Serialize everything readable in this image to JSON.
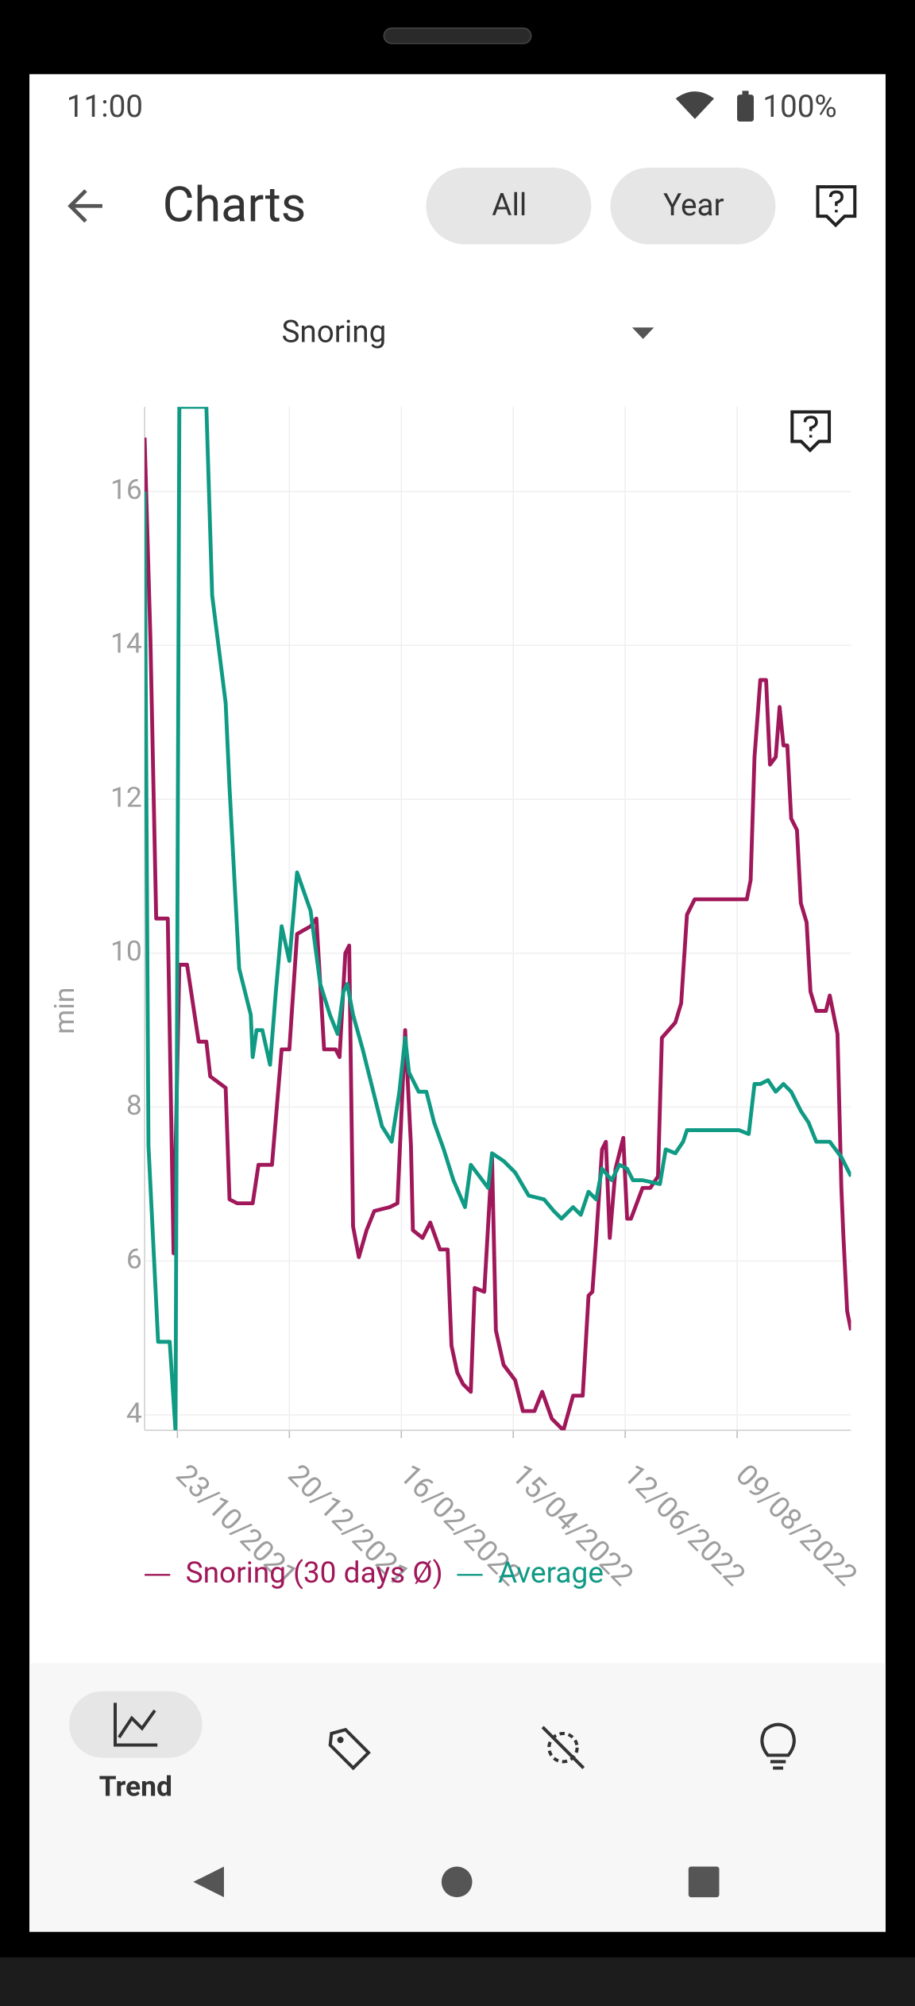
{
  "status_bar": {
    "time": "11:00",
    "battery": "100%"
  },
  "app_bar": {
    "title": "Charts",
    "filters": [
      "All",
      "Year"
    ]
  },
  "metric_selector": "Snoring",
  "chart_data": {
    "type": "line",
    "y_label": "min",
    "xlim": [
      "06/10/2021",
      "07/10/2022"
    ],
    "xticks": [
      "23/10/2021",
      "20/12/2021",
      "16/02/2022",
      "15/04/2022",
      "12/06/2022",
      "09/08/2022"
    ],
    "ylim": [
      3.8,
      17.1
    ],
    "yticks": [
      4,
      6,
      8,
      10,
      12,
      14,
      16
    ],
    "grid": true,
    "legend": "bottom",
    "series": [
      {
        "name": "Snoring (30 days Ø)",
        "color": "#a0175a",
        "x": [
          "06/10/2021",
          "09/10/2021",
          "12/10/2021",
          "18/10/2021",
          "21/10/2021",
          "24/10/2021",
          "28/10/2021",
          "03/11/2021",
          "07/11/2021",
          "09/11/2021",
          "17/11/2021",
          "19/11/2021",
          "23/11/2021",
          "01/12/2021",
          "04/12/2021",
          "11/12/2021",
          "16/12/2021",
          "20/12/2021",
          "24/12/2021",
          "31/12/2021",
          "03/01/2022",
          "07/01/2022",
          "13/01/2022",
          "15/01/2022",
          "18/01/2022",
          "20/01/2022",
          "22/01/2022",
          "25/01/2022",
          "29/01/2022",
          "02/02/2022",
          "10/02/2022",
          "14/02/2022",
          "18/02/2022",
          "21/02/2022",
          "22/02/2022",
          "27/02/2022",
          "03/03/2022",
          "08/03/2022",
          "12/03/2022",
          "14/03/2022",
          "17/03/2022",
          "20/03/2022",
          "24/03/2022",
          "26/03/2022",
          "31/03/2022",
          "04/04/2022",
          "06/04/2022",
          "10/04/2022",
          "16/04/2022",
          "20/04/2022",
          "26/04/2022",
          "30/04/2022",
          "05/05/2022",
          "11/05/2022",
          "16/05/2022",
          "21/05/2022",
          "24/05/2022",
          "26/05/2022",
          "28/05/2022",
          "31/05/2022",
          "02/06/2022",
          "04/06/2022",
          "07/06/2022",
          "11/06/2022",
          "13/06/2022",
          "15/06/2022",
          "21/06/2022",
          "25/06/2022",
          "29/06/2022",
          "01/07/2022",
          "08/07/2022",
          "11/07/2022",
          "14/07/2022",
          "18/07/2022",
          "14/08/2022",
          "16/08/2022",
          "18/08/2022",
          "21/08/2022",
          "24/08/2022",
          "26/08/2022",
          "29/08/2022",
          "31/08/2022",
          "02/09/2022",
          "04/09/2022",
          "06/09/2022",
          "09/09/2022",
          "11/09/2022",
          "14/09/2022",
          "16/09/2022",
          "19/09/2022",
          "24/09/2022",
          "26/09/2022",
          "30/09/2022",
          "02/10/2022",
          "03/10/2022",
          "05/10/2022",
          "07/10/2022"
        ],
        "values": [
          16.7,
          14.1,
          10.45,
          10.45,
          6.1,
          9.85,
          9.85,
          8.85,
          8.85,
          8.4,
          8.25,
          6.8,
          6.75,
          6.75,
          7.25,
          7.25,
          8.75,
          8.75,
          10.25,
          10.35,
          10.45,
          8.75,
          8.75,
          8.65,
          10.0,
          10.1,
          6.45,
          6.05,
          6.4,
          6.65,
          6.7,
          6.75,
          9.0,
          7.5,
          6.4,
          6.3,
          6.5,
          6.15,
          6.15,
          4.9,
          4.55,
          4.4,
          4.3,
          5.65,
          5.6,
          7.35,
          5.1,
          4.65,
          4.45,
          4.05,
          4.05,
          4.3,
          3.95,
          3.8,
          4.25,
          4.25,
          5.55,
          5.6,
          6.3,
          7.45,
          7.55,
          6.3,
          7.2,
          7.6,
          6.55,
          6.55,
          6.95,
          6.95,
          7.1,
          8.9,
          9.1,
          9.35,
          10.5,
          10.7,
          10.7,
          10.95,
          12.55,
          13.55,
          13.55,
          12.45,
          12.55,
          13.2,
          12.7,
          12.7,
          11.75,
          11.6,
          10.65,
          10.4,
          9.5,
          9.25,
          9.25,
          9.45,
          8.95,
          6.95,
          6.35,
          5.35,
          5.1
        ]
      },
      {
        "name": "Average",
        "color": "#0f9a84",
        "x": [
          "06/10/2021",
          "08/10/2021",
          "13/10/2021",
          "19/10/2021",
          "22/10/2021",
          "24/10/2021",
          "07/11/2021",
          "10/11/2021",
          "17/11/2021",
          "19/11/2021",
          "24/11/2021",
          "30/11/2021",
          "01/12/2021",
          "03/12/2021",
          "06/12/2021",
          "10/12/2021",
          "13/12/2021",
          "16/12/2021",
          "20/12/2021",
          "24/12/2021",
          "31/12/2021",
          "05/01/2022",
          "10/01/2022",
          "14/01/2022",
          "17/01/2022",
          "19/01/2022",
          "22/01/2022",
          "27/01/2022",
          "01/02/2022",
          "06/02/2022",
          "11/02/2022",
          "15/02/2022",
          "18/02/2022",
          "20/02/2022",
          "25/02/2022",
          "01/03/2022",
          "05/03/2022",
          "10/03/2022",
          "15/03/2022",
          "21/03/2022",
          "24/03/2022",
          "30/03/2022",
          "02/04/2022",
          "04/04/2022",
          "10/04/2022",
          "16/04/2022",
          "23/04/2022",
          "01/05/2022",
          "06/05/2022",
          "10/05/2022",
          "16/05/2022",
          "20/05/2022",
          "24/05/2022",
          "28/05/2022",
          "31/05/2022",
          "05/06/2022",
          "09/06/2022",
          "13/06/2022",
          "16/06/2022",
          "21/06/2022",
          "30/06/2022",
          "03/07/2022",
          "08/07/2022",
          "12/07/2022",
          "14/07/2022",
          "10/08/2022",
          "15/08/2022",
          "18/08/2022",
          "21/08/2022",
          "25/08/2022",
          "29/08/2022",
          "02/09/2022",
          "06/09/2022",
          "11/09/2022",
          "15/09/2022",
          "19/09/2022",
          "26/09/2022",
          "02/10/2022",
          "07/10/2022"
        ],
        "values": [
          16.0,
          7.5,
          4.95,
          4.95,
          3.8,
          17.1,
          17.1,
          14.65,
          13.25,
          12.15,
          9.8,
          9.2,
          8.65,
          9.0,
          9.0,
          8.55,
          9.5,
          10.35,
          9.9,
          11.05,
          10.55,
          9.6,
          9.2,
          8.95,
          9.5,
          9.6,
          9.2,
          8.75,
          8.25,
          7.75,
          7.55,
          8.2,
          8.9,
          8.45,
          8.2,
          8.2,
          7.8,
          7.45,
          7.05,
          6.7,
          7.25,
          7.05,
          6.95,
          7.4,
          7.3,
          7.15,
          6.85,
          6.8,
          6.65,
          6.55,
          6.7,
          6.6,
          6.9,
          6.8,
          7.2,
          7.05,
          7.25,
          7.2,
          7.05,
          7.05,
          7.0,
          7.45,
          7.4,
          7.55,
          7.7,
          7.7,
          7.65,
          8.3,
          8.3,
          8.35,
          8.2,
          8.3,
          8.2,
          7.95,
          7.8,
          7.55,
          7.55,
          7.35,
          7.1
        ]
      }
    ]
  },
  "bottom_nav": {
    "active_label": "Trend"
  }
}
